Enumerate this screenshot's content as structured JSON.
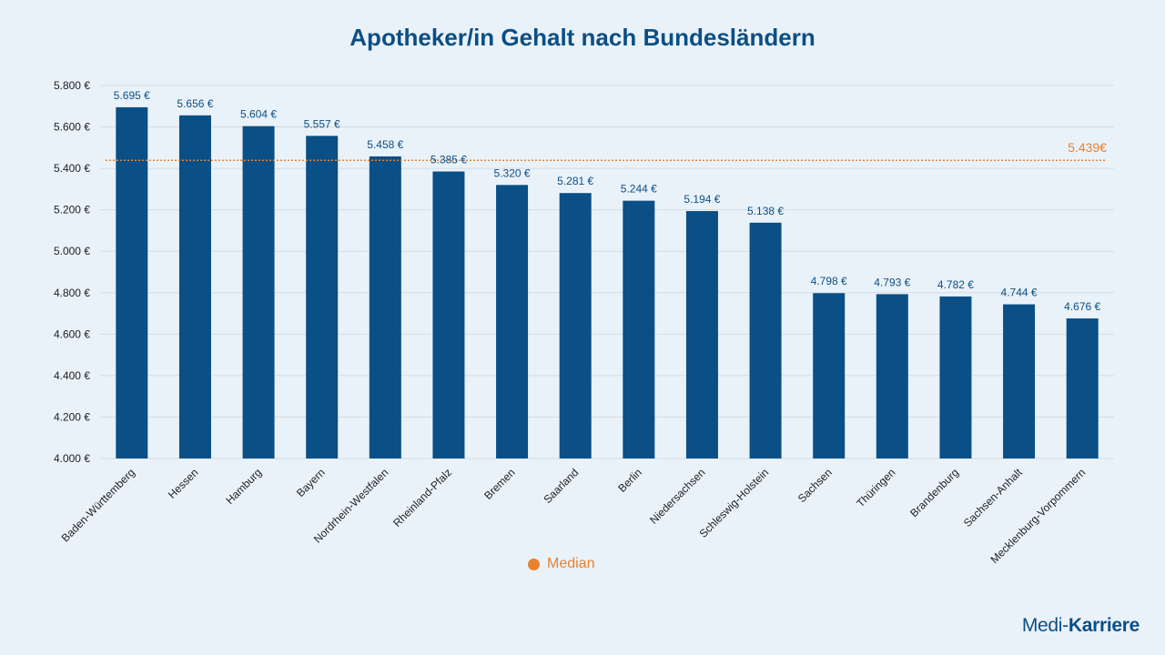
{
  "chart_data": {
    "type": "bar",
    "title": "Apotheker/in Gehalt nach Bundesländern",
    "xlabel": "",
    "ylabel": "",
    "ylim": [
      4000,
      5800
    ],
    "yticks": [
      4000,
      4200,
      4400,
      4600,
      4800,
      5000,
      5200,
      5400,
      5600,
      5800
    ],
    "ytick_labels": [
      "4.000 €",
      "4.200 €",
      "4.400 €",
      "4.600 €",
      "4.800 €",
      "5.000 €",
      "5.200 €",
      "5.400 €",
      "5.600 €",
      "5.800 €"
    ],
    "grid": true,
    "categories": [
      "Baden-Württemberg",
      "Hessen",
      "Hamburg",
      "Bayern",
      "Nordrhein-Westfalen",
      "Rheinland-Pfalz",
      "Bremen",
      "Saarland",
      "Berlin",
      "Niedersachsen",
      "Schleswig-Holstein",
      "Sachsen",
      "Thüringen",
      "Brandenburg",
      "Sachsen-Anhalt",
      "Mecklenburg-Vorpommern"
    ],
    "values": [
      5695,
      5656,
      5604,
      5557,
      5458,
      5385,
      5320,
      5281,
      5244,
      5194,
      5138,
      4798,
      4793,
      4782,
      4744,
      4676
    ],
    "value_labels": [
      "5.695 €",
      "5.656 €",
      "5.604 €",
      "5.557 €",
      "5.458 €",
      "5.385 €",
      "5.320 €",
      "5.281 €",
      "5.244 €",
      "5.194 €",
      "5.138 €",
      "4.798 €",
      "4.793 €",
      "4.782 €",
      "4.744 €",
      "4.676 €"
    ],
    "median": {
      "value": 5439,
      "label": "5.439€",
      "name": "Median"
    },
    "legend_position": "bottom",
    "colors": {
      "bar": "#0a4f86",
      "median": "#e8812f",
      "text": "#0a4f86",
      "grid": "#d3dbe3"
    }
  },
  "brand": {
    "part1": "Medi-",
    "part2": "Karriere"
  }
}
